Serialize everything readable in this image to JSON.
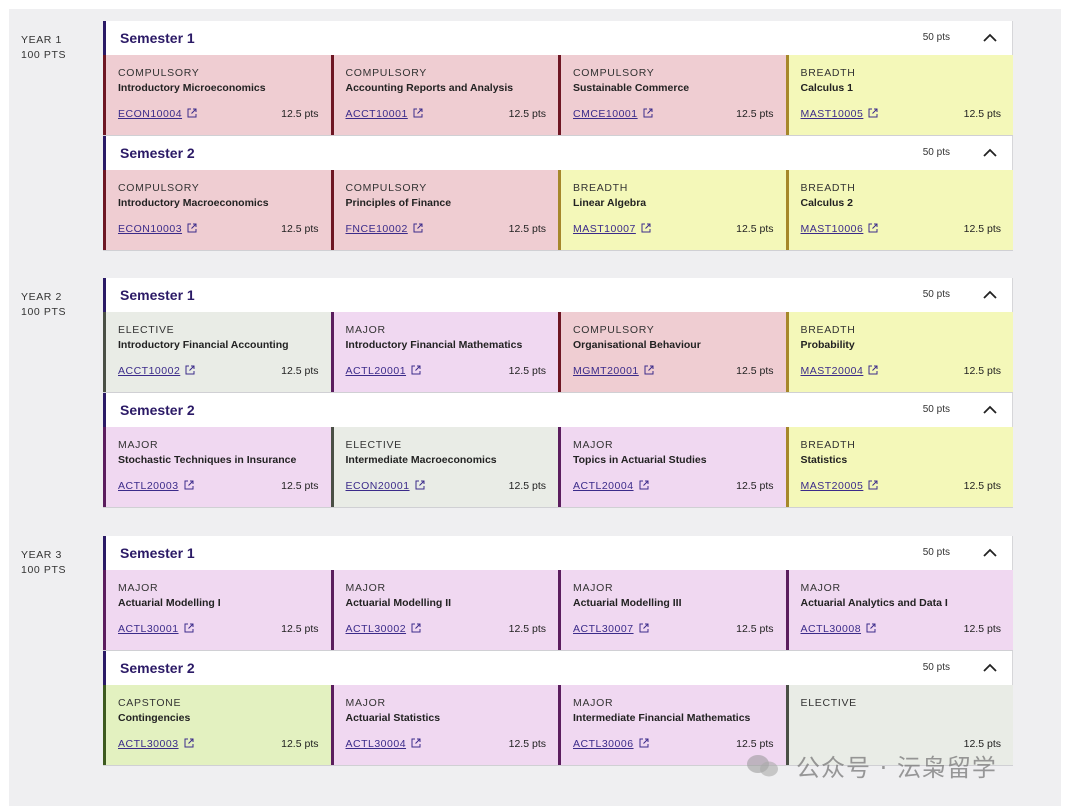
{
  "years": [
    {
      "label": "YEAR 1",
      "points": "100 PTS",
      "semesters": [
        {
          "title": "Semester 1",
          "points": "50 pts",
          "units": [
            {
              "category": "COMPULSORY",
              "name": "Introductory Microeconomics",
              "code": "ECON10004",
              "points": "12.5 pts",
              "type": "compulsory"
            },
            {
              "category": "COMPULSORY",
              "name": "Accounting Reports and Analysis",
              "code": "ACCT10001",
              "points": "12.5 pts",
              "type": "compulsory"
            },
            {
              "category": "COMPULSORY",
              "name": "Sustainable Commerce",
              "code": "CMCE10001",
              "points": "12.5 pts",
              "type": "compulsory"
            },
            {
              "category": "BREADTH",
              "name": "Calculus 1",
              "code": "MAST10005",
              "points": "12.5 pts",
              "type": "breadth"
            }
          ]
        },
        {
          "title": "Semester 2",
          "points": "50 pts",
          "units": [
            {
              "category": "COMPULSORY",
              "name": "Introductory Macroeconomics",
              "code": "ECON10003",
              "points": "12.5 pts",
              "type": "compulsory"
            },
            {
              "category": "COMPULSORY",
              "name": "Principles of Finance",
              "code": "FNCE10002",
              "points": "12.5 pts",
              "type": "compulsory"
            },
            {
              "category": "BREADTH",
              "name": "Linear Algebra",
              "code": "MAST10007",
              "points": "12.5 pts",
              "type": "breadth"
            },
            {
              "category": "BREADTH",
              "name": "Calculus 2",
              "code": "MAST10006",
              "points": "12.5 pts",
              "type": "breadth"
            }
          ]
        }
      ]
    },
    {
      "label": "YEAR 2",
      "points": "100 PTS",
      "semesters": [
        {
          "title": "Semester 1",
          "points": "50 pts",
          "units": [
            {
              "category": "ELECTIVE",
              "name": "Introductory Financial Accounting",
              "code": "ACCT10002",
              "points": "12.5 pts",
              "type": "elective"
            },
            {
              "category": "MAJOR",
              "name": "Introductory Financial Mathematics",
              "code": "ACTL20001",
              "points": "12.5 pts",
              "type": "major"
            },
            {
              "category": "COMPULSORY",
              "name": "Organisational Behaviour",
              "code": "MGMT20001",
              "points": "12.5 pts",
              "type": "compulsory"
            },
            {
              "category": "BREADTH",
              "name": "Probability",
              "code": "MAST20004",
              "points": "12.5 pts",
              "type": "breadth"
            }
          ]
        },
        {
          "title": "Semester 2",
          "points": "50 pts",
          "units": [
            {
              "category": "MAJOR",
              "name": "Stochastic Techniques in Insurance",
              "code": "ACTL20003",
              "points": "12.5 pts",
              "type": "major"
            },
            {
              "category": "ELECTIVE",
              "name": "Intermediate Macroeconomics",
              "code": "ECON20001",
              "points": "12.5 pts",
              "type": "elective"
            },
            {
              "category": "MAJOR",
              "name": "Topics in Actuarial Studies",
              "code": "ACTL20004",
              "points": "12.5 pts",
              "type": "major"
            },
            {
              "category": "BREADTH",
              "name": "Statistics",
              "code": "MAST20005",
              "points": "12.5 pts",
              "type": "breadth"
            }
          ]
        }
      ]
    },
    {
      "label": "YEAR 3",
      "points": "100 PTS",
      "semesters": [
        {
          "title": "Semester 1",
          "points": "50 pts",
          "units": [
            {
              "category": "MAJOR",
              "name": "Actuarial Modelling I",
              "code": "ACTL30001",
              "points": "12.5 pts",
              "type": "major"
            },
            {
              "category": "MAJOR",
              "name": "Actuarial Modelling II",
              "code": "ACTL30002",
              "points": "12.5 pts",
              "type": "major"
            },
            {
              "category": "MAJOR",
              "name": "Actuarial Modelling III",
              "code": "ACTL30007",
              "points": "12.5 pts",
              "type": "major"
            },
            {
              "category": "MAJOR",
              "name": "Actuarial Analytics and Data I",
              "code": "ACTL30008",
              "points": "12.5 pts",
              "type": "major"
            }
          ]
        },
        {
          "title": "Semester 2",
          "points": "50 pts",
          "units": [
            {
              "category": "CAPSTONE",
              "name": "Contingencies",
              "code": "ACTL30003",
              "points": "12.5 pts",
              "type": "capstone"
            },
            {
              "category": "MAJOR",
              "name": "Actuarial Statistics",
              "code": "ACTL30004",
              "points": "12.5 pts",
              "type": "major"
            },
            {
              "category": "MAJOR",
              "name": "Intermediate Financial Mathematics",
              "code": "ACTL30006",
              "points": "12.5 pts",
              "type": "major"
            },
            {
              "category": "ELECTIVE",
              "name": "",
              "code": "",
              "points": "12.5 pts",
              "type": "elective"
            }
          ]
        }
      ]
    }
  ],
  "watermark": "公众号 · 沄枭留学",
  "colors": {
    "semester_title": "#2b1a66",
    "compulsory": "#efcdd2",
    "breadth": "#f4f8b9",
    "elective": "#e9ece6",
    "major": "#f0d8f1",
    "capstone": "#e3f1c0"
  },
  "icons": {
    "collapse": "chevron-up-icon",
    "external": "external-link-icon"
  }
}
